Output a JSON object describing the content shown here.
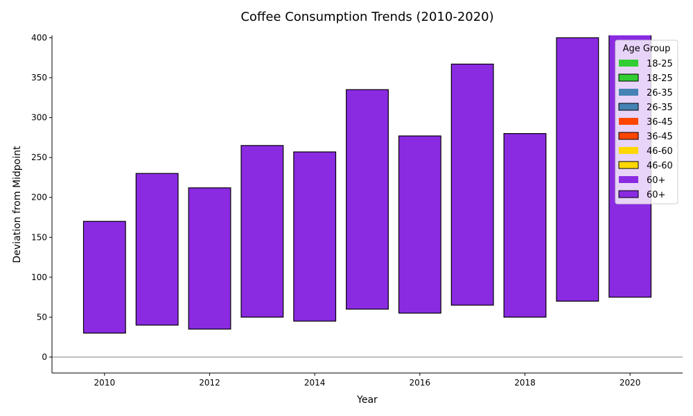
{
  "chart_data": {
    "type": "bar",
    "title": "Coffee Consumption Trends (2010-2020)",
    "xlabel": "Year",
    "ylabel": "Deviation from Midpoint",
    "xlim": [
      2009,
      2021
    ],
    "ylim": [
      -20,
      403
    ],
    "x_ticks": [
      2010,
      2012,
      2014,
      2016,
      2018,
      2020
    ],
    "y_ticks": [
      0,
      50,
      100,
      150,
      200,
      250,
      300,
      350,
      400
    ],
    "grid": false,
    "zero_line": true,
    "legend": {
      "title": "Age Group",
      "placement": "top-right",
      "entries": [
        {
          "label": "18-25",
          "color": "#32cd32",
          "style": "filled"
        },
        {
          "label": "18-25",
          "color": "#32cd32",
          "style": "outlined"
        },
        {
          "label": "26-35",
          "color": "#4682b4",
          "style": "filled"
        },
        {
          "label": "26-35",
          "color": "#4682b4",
          "style": "outlined"
        },
        {
          "label": "36-45",
          "color": "#ff4500",
          "style": "filled"
        },
        {
          "label": "36-45",
          "color": "#ff4500",
          "style": "outlined"
        },
        {
          "label": "46-60",
          "color": "#ffd700",
          "style": "filled"
        },
        {
          "label": "46-60",
          "color": "#ffd700",
          "style": "outlined"
        },
        {
          "label": "60+",
          "color": "#8a2be2",
          "style": "filled"
        },
        {
          "label": "60+",
          "color": "#8a2be2",
          "style": "outlined"
        }
      ]
    },
    "bars": [
      {
        "year": 2010,
        "bottom": 30,
        "top": 170
      },
      {
        "year": 2011,
        "bottom": 40,
        "top": 230
      },
      {
        "year": 2012,
        "bottom": 35,
        "top": 212
      },
      {
        "year": 2013,
        "bottom": 50,
        "top": 265
      },
      {
        "year": 2014,
        "bottom": 45,
        "top": 257
      },
      {
        "year": 2015,
        "bottom": 60,
        "top": 335
      },
      {
        "year": 2016,
        "bottom": 55,
        "top": 277
      },
      {
        "year": 2017,
        "bottom": 65,
        "top": 367
      },
      {
        "year": 2018,
        "bottom": 50,
        "top": 280
      },
      {
        "year": 2019,
        "bottom": 70,
        "top": 400
      },
      {
        "year": 2020,
        "bottom": 75,
        "top": 410
      }
    ],
    "bar_color": "#8a2be2"
  }
}
